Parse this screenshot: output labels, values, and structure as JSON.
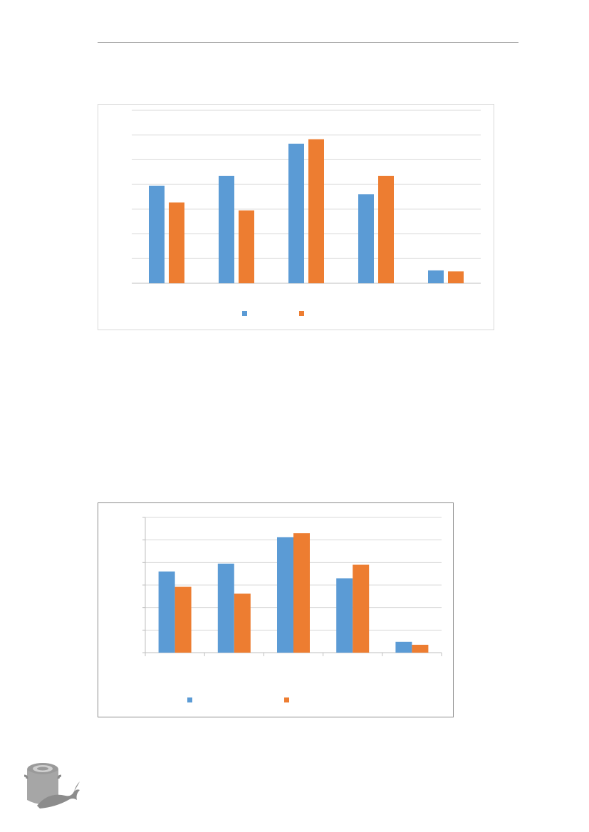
{
  "colors": {
    "series_a": "#5b9bd5",
    "series_b": "#ed7d31",
    "grid": "#d9d9d9",
    "axis": "#bfbfbf"
  },
  "logo": {
    "icon": "pot-fish-icon"
  },
  "chart_data": [
    {
      "type": "bar",
      "categories": [
        "",
        "",
        "",
        "",
        ""
      ],
      "series": [
        {
          "values": [
            3.95,
            4.35,
            5.65,
            3.6,
            0.52
          ]
        },
        {
          "values": [
            3.27,
            2.95,
            5.83,
            4.35,
            0.48
          ]
        }
      ],
      "ylim": [
        0,
        7
      ],
      "grid": true,
      "legend": "bottom"
    },
    {
      "type": "bar",
      "categories": [
        "",
        "",
        "",
        "",
        ""
      ],
      "series": [
        {
          "values": [
            3.6,
            3.95,
            5.12,
            3.3,
            0.48
          ]
        },
        {
          "values": [
            2.92,
            2.62,
            5.3,
            3.9,
            0.35
          ]
        }
      ],
      "ylim": [
        0,
        6
      ],
      "grid": true,
      "legend": "bottom"
    }
  ]
}
